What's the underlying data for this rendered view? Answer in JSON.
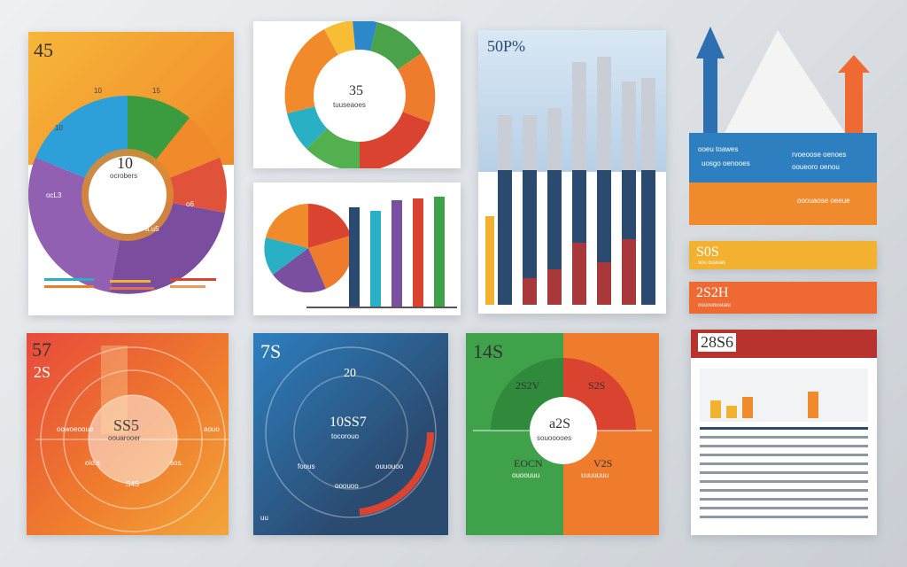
{
  "colors": {
    "blue": "#2d7fc0",
    "navy": "#2b4a6f",
    "green": "#3fa24a",
    "orange": "#ef7b2d",
    "red": "#d9432f",
    "purple": "#7b4fa0",
    "yellow": "#f2b230",
    "teal": "#2ab0c5",
    "gray": "#a9b3bd"
  },
  "card1": {
    "corner": "45",
    "seg_top": "10",
    "seg_right": "15",
    "seg_left": "10",
    "center_value": "10",
    "center_caption": "ocrobers",
    "seg_bottom_left": "ocL3",
    "seg_bottom_right": "a.u5",
    "seg_mid_right": "o6",
    "icon": "puzzle-icon"
  },
  "card2": {
    "center_value": "35",
    "center_caption": "tuuseaoes"
  },
  "card4": {
    "title": "50P%"
  },
  "card5": {
    "row1_left": "ooeu toawes",
    "row1_left_sub": "uosgo oenooes",
    "row1_right": "rvoeoose oenoes",
    "row1_right_sub": "ooueoro oenou",
    "row2_right": "ooouaose oeeue"
  },
  "bar6": {
    "value": "S0S",
    "caption": "sou ouauas"
  },
  "bar7": {
    "value": "2S2H",
    "caption": "ouuououuuau"
  },
  "card8": {
    "corner": "57",
    "sub": "2S",
    "center_value": "SS5",
    "center_caption": "oouarooer",
    "label_a": "oowoeooue",
    "label_b": "oio.s",
    "label_c": "sos.",
    "label_d": "S4S",
    "label_e": "aouo"
  },
  "card9": {
    "corner": "7S",
    "top": "20",
    "center_value": "10SS7",
    "center_caption": "tocorouo",
    "label_a": "foous",
    "label_b": "ouuouoo",
    "label_c": "ooouoo",
    "corner_caption": "uu"
  },
  "card10": {
    "corner": "14S",
    "q1": "2S2V",
    "q2": "S2S",
    "center_value": "a2S",
    "center_caption": "souooooes",
    "q3": "EOCN",
    "q3_caption": "ouoouuu",
    "q4": "V2S",
    "q4_caption": "uuuuuuu"
  },
  "card11": {
    "title": "28S6"
  }
}
